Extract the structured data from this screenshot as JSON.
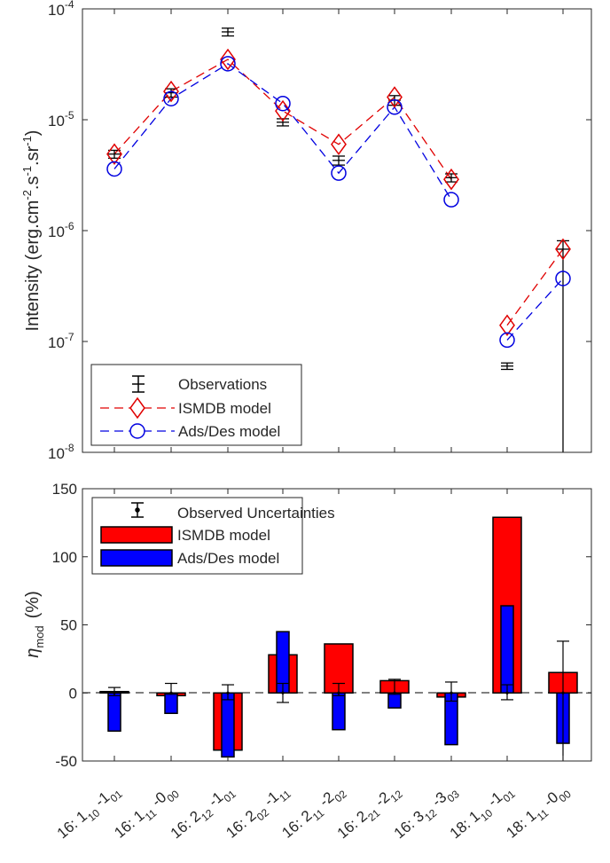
{
  "chart_data": [
    {
      "type": "line",
      "ylabel": "Intensity (erg.cm-2.s-1.sr-1)",
      "ylabel_parts": {
        "main": "Intensity (erg.cm",
        "sup1": "-2",
        "mid1": ".s",
        "sup2": "-1",
        "mid2": ".sr",
        "sup3": "-1",
        "end": ")"
      },
      "yscale": "log",
      "ylim": [
        1e-08,
        0.0001
      ],
      "yticks": [
        {
          "value": 1e-08,
          "base": "10",
          "exp": "-8"
        },
        {
          "value": 1e-07,
          "base": "10",
          "exp": "-7"
        },
        {
          "value": 1e-06,
          "base": "10",
          "exp": "-6"
        },
        {
          "value": 1e-05,
          "base": "10",
          "exp": "-5"
        },
        {
          "value": 0.0001,
          "base": "10",
          "exp": "-4"
        }
      ],
      "legend_position": "bottom-left",
      "legend": [
        "Observations",
        "ISMDB model",
        "Ads/Des model"
      ],
      "segments": [
        [
          0,
          6
        ],
        [
          7,
          8
        ]
      ],
      "series": [
        {
          "name": "Observations",
          "values": [
            4.9e-06,
            1.75e-05,
            6.2e-05,
            9.5e-06,
            4.3e-06,
            1.5e-05,
            3e-06,
            6e-08,
            6.8e-07
          ],
          "error_low": [
            4.5e-06,
            1.6e-05,
            5.7e-05,
            8.8e-06,
            3.9e-06,
            1.35e-05,
            2.75e-06,
            5.6e-08,
            1e-08
          ],
          "error_high": [
            5.3e-06,
            1.9e-05,
            6.7e-05,
            1.02e-05,
            4.7e-06,
            1.65e-05,
            3.25e-06,
            6.4e-08,
            8.1e-07
          ],
          "color": "#000000"
        },
        {
          "name": "ISMDB model",
          "values": [
            4.9e-06,
            1.8e-05,
            3.5e-05,
            1.2e-05,
            6e-06,
            1.6e-05,
            2.9e-06,
            1.4e-07,
            6.8e-07
          ],
          "color": "#e00000"
        },
        {
          "name": "Ads/Des model",
          "values": [
            3.6e-06,
            1.55e-05,
            3.2e-05,
            1.4e-05,
            3.3e-06,
            1.3e-05,
            1.9e-06,
            1.03e-07,
            3.7e-07
          ],
          "color": "#0000e0"
        }
      ]
    },
    {
      "type": "bar",
      "ylabel": "η_mod (%)",
      "ylabel_parts": {
        "symbol": "η",
        "sub": "mod",
        "unit": "(%)"
      },
      "ylim": [
        -50,
        150
      ],
      "yticks": [
        "-50",
        "0",
        "50",
        "100",
        "150"
      ],
      "legend_position": "top-left",
      "legend": [
        "Observed Uncertainties",
        "ISMDB model",
        "Ads/Des model"
      ],
      "categories": [
        {
          "pre": "16: 1",
          "sub1": "10",
          "mid": " -1",
          "sub2": "01"
        },
        {
          "pre": "16: 1",
          "sub1": "11",
          "mid": " -0",
          "sub2": "00"
        },
        {
          "pre": "16: 2",
          "sub1": "12",
          "mid": " -1",
          "sub2": "01"
        },
        {
          "pre": "16: 2",
          "sub1": "02",
          "mid": " -1",
          "sub2": "11"
        },
        {
          "pre": "16: 2",
          "sub1": "11",
          "mid": " -2",
          "sub2": "02"
        },
        {
          "pre": "16: 2",
          "sub1": "21",
          "mid": " -2",
          "sub2": "12"
        },
        {
          "pre": "16: 3",
          "sub1": "12",
          "mid": " -3",
          "sub2": "03"
        },
        {
          "pre": "18: 1",
          "sub1": "10",
          "mid": " -1",
          "sub2": "01"
        },
        {
          "pre": "18: 1",
          "sub1": "11",
          "mid": " -0",
          "sub2": "00"
        }
      ],
      "series": [
        {
          "name": "Observed Uncertainties",
          "error_low": [
            -2,
            -1,
            -5,
            -7,
            -2,
            -1,
            -6,
            -5,
            -50
          ],
          "error_high": [
            4,
            7,
            6,
            7,
            7,
            10,
            8,
            6,
            38
          ],
          "color": "#000000"
        },
        {
          "name": "ISMDB model",
          "values": [
            1,
            -2,
            -42,
            28,
            36,
            9,
            -3,
            129,
            15
          ],
          "color": "#ff0000"
        },
        {
          "name": "Ads/Des model",
          "values": [
            -28,
            -15,
            -47,
            45,
            -27,
            -11,
            -38,
            64,
            -37
          ],
          "color": "#0000ff"
        }
      ]
    }
  ]
}
